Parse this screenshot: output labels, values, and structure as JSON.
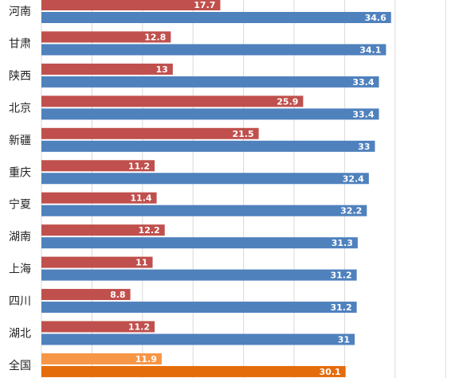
{
  "chart_data": {
    "type": "bar",
    "orientation": "horizontal",
    "grid": true,
    "categories": [
      "河南",
      "甘肃",
      "陕西",
      "北京",
      "新疆",
      "重庆",
      "宁夏",
      "湖南",
      "上海",
      "四川",
      "湖北",
      "全国"
    ],
    "series": [
      {
        "values": [
          17.7,
          12.8,
          13,
          25.9,
          21.5,
          11.2,
          11.4,
          12.2,
          11,
          8.8,
          11.2,
          11.9
        ],
        "color": "#c0504d",
        "highlight_color": "#f79646"
      },
      {
        "values": [
          34.6,
          34.1,
          33.4,
          33.4,
          33,
          32.4,
          32.2,
          31.3,
          31.2,
          31.2,
          31,
          30.1
        ],
        "color": "#4f81bd",
        "highlight_color": "#e46c0a"
      }
    ],
    "highlight_category": "全国",
    "xlim": [
      0,
      40
    ]
  }
}
